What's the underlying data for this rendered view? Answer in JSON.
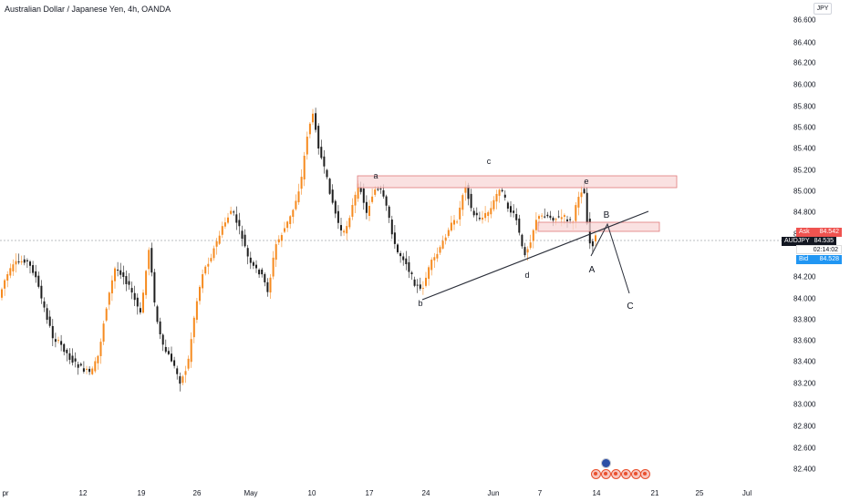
{
  "title": "Australian Dollar / Japanese Yen, 4h, OANDA",
  "currency_badge": "JPY",
  "price_axis_labels": [
    "86.600",
    "86.400",
    "86.200",
    "86.000",
    "85.800",
    "85.600",
    "85.400",
    "85.200",
    "85.000",
    "84.800",
    "84.600",
    "84.200",
    "84.000",
    "83.800",
    "83.600",
    "83.400",
    "83.200",
    "83.000",
    "82.800",
    "82.600",
    "82.400"
  ],
  "time_axis_labels": [
    "pr",
    "12",
    "19",
    "26",
    "May",
    "10",
    "17",
    "24",
    "Jun",
    "7",
    "14",
    "21",
    "25",
    "Jul"
  ],
  "price_tags": {
    "ask_label": "Ask",
    "ask_value": "84.542",
    "symbol": "AUDJPY",
    "symbol_value": "84.535",
    "timer": "02:14:02",
    "bid_label": "Bid",
    "bid_value": "84.528"
  },
  "annotations": {
    "a": "a",
    "b_lower": "b",
    "c_lower": "c",
    "d": "d",
    "e": "e",
    "A": "A",
    "B": "B",
    "C": "C"
  },
  "colors": {
    "up_candle": "#f68a1f",
    "down_candle": "#1e1e1e",
    "zone_fill": "#f8d7d7",
    "zone_border": "#e07b7b",
    "ask": "#ef5350",
    "bid": "#2196f3",
    "trend_line": "#2a2e39"
  },
  "icons": [
    "calendar-event-icon",
    "australia-flag-icon"
  ]
}
